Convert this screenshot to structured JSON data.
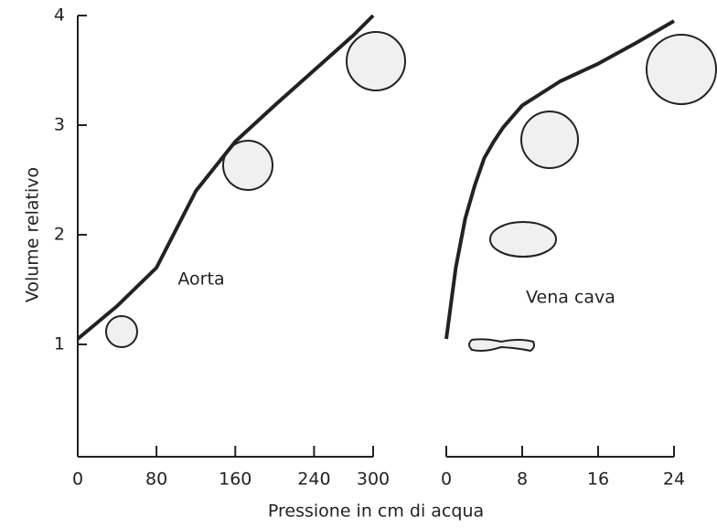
{
  "chart_data": [
    {
      "type": "line",
      "ylabel": "Volume relativo",
      "xlabel": "Pressione in cm di acqua",
      "annotation": "Aorta",
      "x": [
        0,
        40,
        80,
        120,
        160,
        200,
        240,
        280,
        300
      ],
      "series": [
        {
          "name": "Aorta",
          "color": "#222222",
          "values": [
            1.05,
            1.35,
            1.7,
            2.4,
            2.85,
            3.18,
            3.5,
            3.82,
            4.0
          ]
        }
      ],
      "xlim": [
        0,
        300
      ],
      "xticks": [
        0,
        80,
        160,
        240,
        300
      ],
      "ylim": [
        0,
        4
      ],
      "yticks": [
        1,
        2,
        3,
        4
      ]
    },
    {
      "type": "line",
      "annotation": "Vena cava",
      "x": [
        0,
        1,
        2,
        3,
        4,
        5,
        6,
        8,
        12,
        16,
        20,
        24
      ],
      "series": [
        {
          "name": "Vena cava",
          "color": "#222222",
          "values": [
            1.05,
            1.7,
            2.15,
            2.45,
            2.7,
            2.85,
            2.98,
            3.18,
            3.4,
            3.56,
            3.75,
            3.95
          ]
        }
      ],
      "xlim": [
        0,
        24
      ],
      "xticks": [
        0,
        8,
        16,
        24
      ],
      "ylim": [
        0,
        4
      ]
    }
  ]
}
